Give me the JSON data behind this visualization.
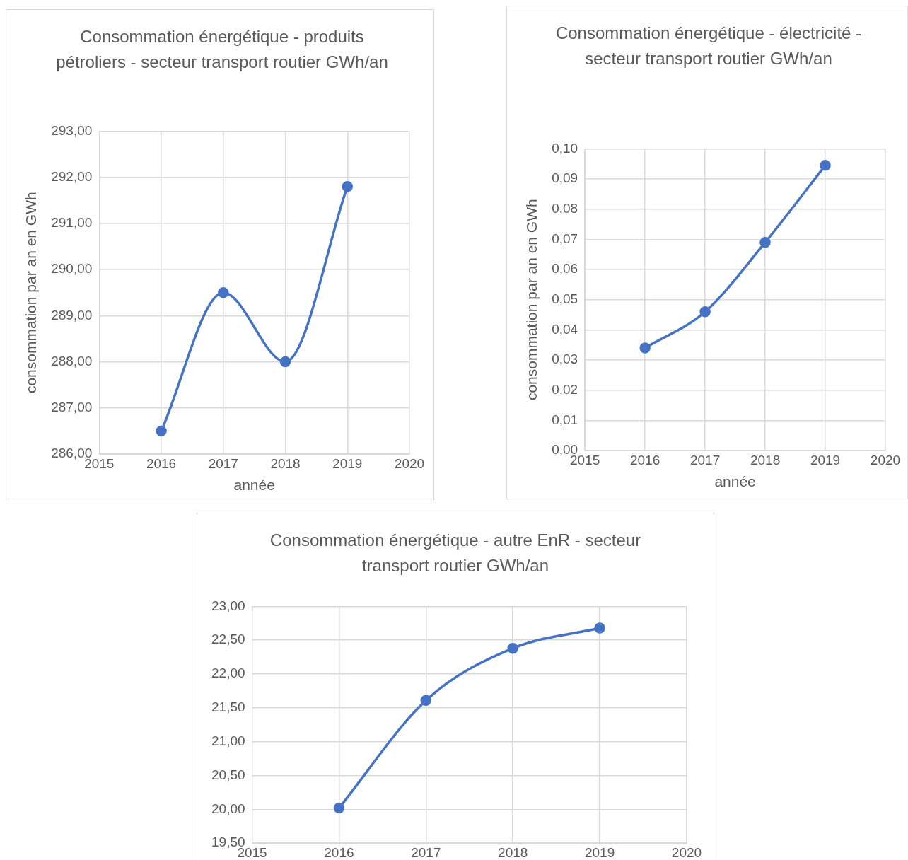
{
  "chart_data": [
    {
      "type": "line",
      "title": "Consommation énergétique - produits pétroliers - secteur transport routier GWh/an",
      "xlabel": "année",
      "ylabel": "consommation par an en GWh",
      "x": [
        2016,
        2017,
        2018,
        2019
      ],
      "series": [
        {
          "color": "#4472c4",
          "values": [
            286.5,
            289.5,
            288.0,
            291.8
          ]
        }
      ],
      "xlim": [
        2015,
        2020
      ],
      "xticks": [
        2015,
        2016,
        2017,
        2018,
        2019,
        2020
      ],
      "ylim": [
        286,
        293
      ],
      "yticks": [
        {
          "value": 286,
          "label": "286,00"
        },
        {
          "value": 287,
          "label": "287,00"
        },
        {
          "value": 288,
          "label": "288,00"
        },
        {
          "value": 289,
          "label": "289,00"
        },
        {
          "value": 290,
          "label": "290,00"
        },
        {
          "value": 291,
          "label": "291,00"
        },
        {
          "value": 292,
          "label": "292,00"
        },
        {
          "value": 293,
          "label": "293,00"
        }
      ],
      "grid": true,
      "legend": false,
      "marker": "circle",
      "line_style": "solid"
    },
    {
      "type": "line",
      "title": "Consommation énergétique - électricité - secteur transport routier GWh/an",
      "xlabel": "année",
      "ylabel": "consommation par an en GWh",
      "x": [
        2016,
        2017,
        2018,
        2019
      ],
      "series": [
        {
          "color": "#4472c4",
          "values": [
            0.034,
            0.046,
            0.069,
            0.0945
          ]
        }
      ],
      "xlim": [
        2015,
        2020
      ],
      "xticks": [
        2015,
        2016,
        2017,
        2018,
        2019,
        2020
      ],
      "ylim": [
        0,
        0.1
      ],
      "yticks": [
        {
          "value": 0,
          "label": "0,00"
        },
        {
          "value": 0.01,
          "label": "0,01"
        },
        {
          "value": 0.02,
          "label": "0,02"
        },
        {
          "value": 0.03,
          "label": "0,03"
        },
        {
          "value": 0.04,
          "label": "0,04"
        },
        {
          "value": 0.05,
          "label": "0,05"
        },
        {
          "value": 0.06,
          "label": "0,06"
        },
        {
          "value": 0.07,
          "label": "0,07"
        },
        {
          "value": 0.08,
          "label": "0,08"
        },
        {
          "value": 0.09,
          "label": "0,09"
        },
        {
          "value": 0.1,
          "label": "0,10"
        }
      ],
      "grid": true,
      "legend": false,
      "marker": "circle",
      "line_style": "solid"
    },
    {
      "type": "line",
      "title": "Consommation énergétique - autre EnR - secteur transport routier GWh/an",
      "x": [
        2016,
        2017,
        2018,
        2019
      ],
      "series": [
        {
          "color": "#4472c4",
          "values": [
            20.02,
            21.61,
            22.38,
            22.68
          ]
        }
      ],
      "xlim": [
        2015,
        2020
      ],
      "xticks": [
        2015,
        2016,
        2017,
        2018,
        2019,
        2020
      ],
      "ylim": [
        19.5,
        23
      ],
      "yticks": [
        {
          "value": 19.5,
          "label": "19,50"
        },
        {
          "value": 20,
          "label": "20,00"
        },
        {
          "value": 20.5,
          "label": "20,50"
        },
        {
          "value": 21,
          "label": "21,00"
        },
        {
          "value": 21.5,
          "label": "21,50"
        },
        {
          "value": 22,
          "label": "22,00"
        },
        {
          "value": 22.5,
          "label": "22,50"
        },
        {
          "value": 23,
          "label": "23,00"
        }
      ],
      "grid": true,
      "legend": false,
      "marker": "circle",
      "line_style": "solid"
    }
  ]
}
